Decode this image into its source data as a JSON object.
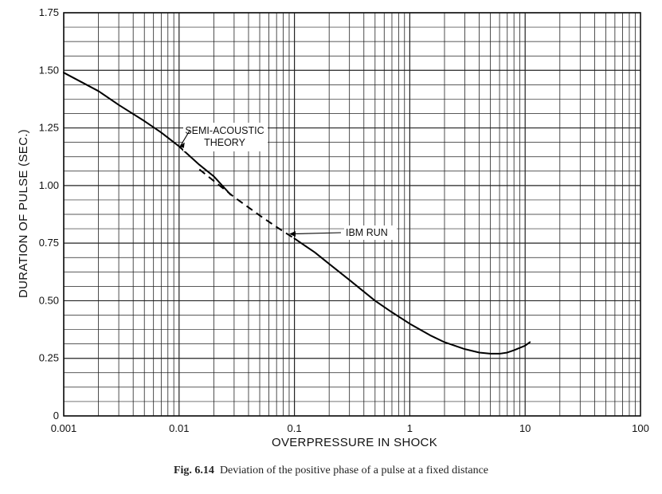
{
  "chart_data": {
    "type": "line",
    "xlabel": "OVERPRESSURE IN SHOCK",
    "ylabel": "DURATION OF PULSE (SEC.)",
    "x_scale": "log",
    "xlim": [
      0.001,
      100
    ],
    "ylim": [
      0,
      1.75
    ],
    "x_ticks": [
      "0.001",
      "0.01",
      "0.1",
      "1",
      "10",
      "100"
    ],
    "y_ticks": [
      "0",
      "0.25",
      "0.50",
      "0.75",
      "1.00",
      "1.25",
      "1.50",
      "1.75"
    ],
    "grid": true,
    "series": [
      {
        "name": "SEMI-ACOUSTIC THEORY",
        "style": "solid",
        "x": [
          0.001,
          0.002,
          0.003,
          0.005,
          0.007,
          0.01,
          0.015,
          0.02,
          0.028
        ],
        "y": [
          1.49,
          1.41,
          1.35,
          1.28,
          1.23,
          1.17,
          1.09,
          1.04,
          0.96
        ]
      },
      {
        "name": "IBM RUN",
        "style": "dashed-then-solid",
        "x": [
          0.015,
          0.02,
          0.03,
          0.05,
          0.07,
          0.1,
          0.15,
          0.2,
          0.3,
          0.5,
          0.7,
          1,
          1.5,
          2,
          3,
          4,
          5,
          6,
          7,
          8,
          10,
          11
        ],
        "y": [
          1.07,
          1.02,
          0.95,
          0.87,
          0.82,
          0.77,
          0.71,
          0.66,
          0.59,
          0.5,
          0.45,
          0.4,
          0.35,
          0.32,
          0.29,
          0.275,
          0.27,
          0.27,
          0.275,
          0.285,
          0.305,
          0.32
        ]
      }
    ],
    "annotations": [
      {
        "lines": [
          "SEMI-ACOUSTIC",
          "THEORY"
        ],
        "points_to": [
          0.01,
          1.17
        ]
      },
      {
        "lines": [
          "IBM RUN"
        ],
        "points_to": [
          0.09,
          0.79
        ]
      }
    ],
    "caption": {
      "number": "Fig. 6.14",
      "text": "Deviation of the positive phase of a pulse at a fixed distance"
    }
  }
}
